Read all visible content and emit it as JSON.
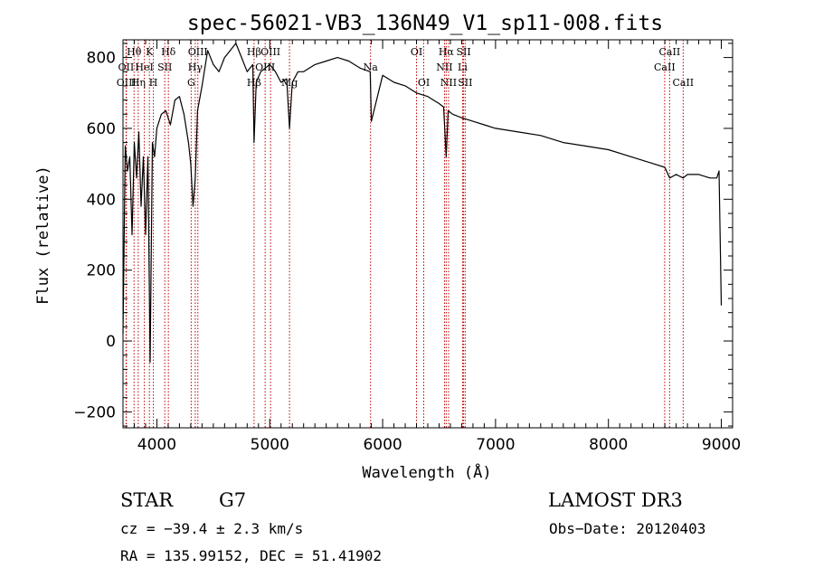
{
  "chart_data": {
    "type": "line",
    "title": "spec-56021-VB3_136N49_V1_sp11-008.fits",
    "xlabel": "Wavelength (Å)",
    "ylabel": "Flux (relative)",
    "xlim": [
      3700,
      9100
    ],
    "ylim": [
      -245,
      850
    ],
    "xticks": [
      {
        "value": 4000,
        "label": "4000"
      },
      {
        "value": 5000,
        "label": "5000"
      },
      {
        "value": 6000,
        "label": "6000"
      },
      {
        "value": 7000,
        "label": "7000"
      },
      {
        "value": 8000,
        "label": "8000"
      },
      {
        "value": 9000,
        "label": "9000"
      }
    ],
    "yticks": [
      {
        "value": -200,
        "label": "−200"
      },
      {
        "value": 0,
        "label": "0"
      },
      {
        "value": 200,
        "label": "200"
      },
      {
        "value": 400,
        "label": "400"
      },
      {
        "value": 600,
        "label": "600"
      },
      {
        "value": 800,
        "label": "800"
      }
    ],
    "series": [
      {
        "name": "flux",
        "x": [
          3700,
          3720,
          3740,
          3760,
          3780,
          3800,
          3820,
          3840,
          3860,
          3880,
          3900,
          3920,
          3940,
          3960,
          3980,
          4000,
          4040,
          4080,
          4120,
          4160,
          4200,
          4240,
          4280,
          4300,
          4320,
          4340,
          4360,
          4400,
          4450,
          4500,
          4550,
          4600,
          4650,
          4700,
          4750,
          4800,
          4850,
          4861,
          4880,
          4920,
          4960,
          5000,
          5050,
          5100,
          5150,
          5175,
          5200,
          5250,
          5300,
          5400,
          5500,
          5600,
          5700,
          5800,
          5890,
          5900,
          6000,
          6100,
          6200,
          6300,
          6400,
          6450,
          6500,
          6540,
          6563,
          6580,
          6620,
          6700,
          6800,
          6900,
          7000,
          7200,
          7400,
          7600,
          7800,
          8000,
          8200,
          8400,
          8500,
          8542,
          8600,
          8662,
          8700,
          8800,
          8900,
          8960,
          8980,
          9000
        ],
        "values": [
          20,
          550,
          480,
          520,
          300,
          560,
          460,
          590,
          380,
          520,
          300,
          520,
          -60,
          560,
          520,
          600,
          640,
          650,
          610,
          680,
          690,
          640,
          560,
          500,
          380,
          460,
          650,
          720,
          820,
          780,
          760,
          800,
          820,
          840,
          800,
          760,
          780,
          560,
          730,
          760,
          770,
          780,
          760,
          730,
          740,
          600,
          730,
          760,
          760,
          780,
          790,
          800,
          790,
          770,
          760,
          620,
          750,
          730,
          720,
          700,
          690,
          680,
          670,
          660,
          520,
          650,
          640,
          630,
          620,
          610,
          600,
          590,
          580,
          560,
          550,
          540,
          520,
          500,
          490,
          460,
          470,
          460,
          470,
          470,
          460,
          460,
          480,
          100
        ]
      }
    ],
    "line_labels": [
      {
        "name": "Hθ",
        "value": 3798,
        "row": 1
      },
      {
        "name": "OII",
        "value": 3727,
        "row": 2
      },
      {
        "name": "OIII",
        "value": 3730,
        "row": 3
      },
      {
        "name": "K",
        "value": 3934,
        "row": 1
      },
      {
        "name": "HeI",
        "value": 3889,
        "row": 2
      },
      {
        "name": "Hη",
        "value": 3835,
        "row": 3
      },
      {
        "name": "Hδ",
        "value": 4102,
        "row": 1
      },
      {
        "name": "SII",
        "value": 4070,
        "row": 2
      },
      {
        "name": "H",
        "value": 3969,
        "row": 3
      },
      {
        "name": "OIII",
        "value": 4363,
        "row": 1
      },
      {
        "name": "Hγ",
        "value": 4340,
        "row": 2
      },
      {
        "name": "G",
        "value": 4304,
        "row": 3
      },
      {
        "name": "Hβ",
        "value": 4861,
        "row": 1
      },
      {
        "name": "OIII",
        "value": 5007,
        "row": 1
      },
      {
        "name": "OIII",
        "value": 4959,
        "row": 2
      },
      {
        "name": "Hβ",
        "value": 4861,
        "row": 3
      },
      {
        "name": "Mg",
        "value": 5175,
        "row": 3
      },
      {
        "name": "Na",
        "value": 5893,
        "row": 2
      },
      {
        "name": "OI",
        "value": 6300,
        "row": 1
      },
      {
        "name": "OI",
        "value": 6364,
        "row": 3
      },
      {
        "name": "Hα",
        "value": 6563,
        "row": 1
      },
      {
        "name": "SII",
        "value": 6717,
        "row": 1
      },
      {
        "name": "NII",
        "value": 6548,
        "row": 2
      },
      {
        "name": "Li",
        "value": 6708,
        "row": 2
      },
      {
        "name": "NII",
        "value": 6584,
        "row": 3
      },
      {
        "name": "SII",
        "value": 6731,
        "row": 3
      },
      {
        "name": "CaII",
        "value": 8542,
        "row": 1
      },
      {
        "name": "CaII",
        "value": 8498,
        "row": 2
      },
      {
        "name": "CaII",
        "value": 8662,
        "row": 3
      }
    ],
    "grid": false,
    "legend": "none"
  },
  "info": {
    "class_label": "STAR",
    "subclass_label": "G7",
    "survey": "LAMOST DR3",
    "cz": "cz = −39.4 ± 2.3 km/s",
    "obs_date": "Obs−Date: 20120403",
    "coords": "RA = 135.99152, DEC =  51.41902"
  }
}
